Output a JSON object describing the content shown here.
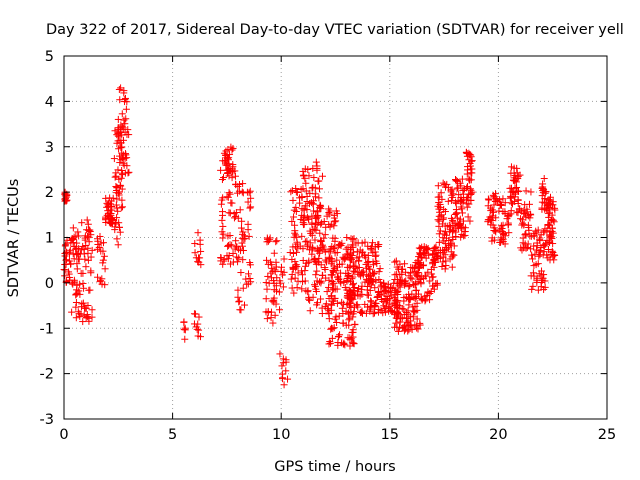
{
  "chart_data": {
    "type": "scatter",
    "title": "Day 322 of 2017, Sidereal Day-to-day VTEC variation (SDTVAR) for receiver yell",
    "xlabel": "GPS time / hours",
    "ylabel": "SDTVAR / TECUs",
    "xlim": [
      0,
      25
    ],
    "ylim": [
      -3,
      5
    ],
    "xticks": [
      0,
      5,
      10,
      15,
      20,
      25
    ],
    "yticks": [
      -3,
      -2,
      -1,
      0,
      1,
      2,
      3,
      4,
      5
    ],
    "grid": true,
    "marker": "+",
    "color": "#ff0000",
    "clusters": [
      {
        "x": [
          0.0,
          0.15
        ],
        "y": [
          1.8,
          2.0
        ],
        "n": 14
      },
      {
        "x": [
          0.0,
          0.35
        ],
        "y": [
          0.0,
          1.0
        ],
        "n": 30
      },
      {
        "x": [
          0.35,
          0.8
        ],
        "y": [
          -0.8,
          1.3
        ],
        "n": 45
      },
      {
        "x": [
          0.8,
          1.3
        ],
        "y": [
          -0.9,
          1.4
        ],
        "n": 50
      },
      {
        "x": [
          1.5,
          1.9
        ],
        "y": [
          -0.1,
          1.1
        ],
        "n": 20
      },
      {
        "x": [
          1.9,
          2.3
        ],
        "y": [
          1.3,
          1.9
        ],
        "n": 40
      },
      {
        "x": [
          2.3,
          2.7
        ],
        "y": [
          0.8,
          3.5
        ],
        "n": 55
      },
      {
        "x": [
          2.5,
          3.0
        ],
        "y": [
          2.3,
          4.3
        ],
        "n": 45
      },
      {
        "x": [
          5.5,
          5.6
        ],
        "y": [
          -1.3,
          -0.6
        ],
        "n": 6
      },
      {
        "x": [
          6.0,
          6.3
        ],
        "y": [
          -1.2,
          -0.6
        ],
        "n": 10
      },
      {
        "x": [
          6.0,
          6.3
        ],
        "y": [
          0.3,
          1.2
        ],
        "n": 12
      },
      {
        "x": [
          7.3,
          7.8
        ],
        "y": [
          2.2,
          3.0
        ],
        "n": 35
      },
      {
        "x": [
          7.2,
          8.0
        ],
        "y": [
          0.4,
          2.5
        ],
        "n": 55
      },
      {
        "x": [
          8.0,
          8.6
        ],
        "y": [
          -0.6,
          2.2
        ],
        "n": 50
      },
      {
        "x": [
          9.3,
          9.8
        ],
        "y": [
          -0.9,
          1.0
        ],
        "n": 45
      },
      {
        "x": [
          9.9,
          10.3
        ],
        "y": [
          -2.3,
          -1.4
        ],
        "n": 12
      },
      {
        "x": [
          9.9,
          10.2
        ],
        "y": [
          -0.6,
          0.7
        ],
        "n": 10
      },
      {
        "x": [
          10.4,
          11.2
        ],
        "y": [
          -0.3,
          2.1
        ],
        "n": 70
      },
      {
        "x": [
          11.0,
          11.8
        ],
        "y": [
          0.4,
          2.7
        ],
        "n": 70
      },
      {
        "x": [
          11.2,
          12.6
        ],
        "y": [
          -0.7,
          1.8
        ],
        "n": 110
      },
      {
        "x": [
          12.2,
          13.4
        ],
        "y": [
          -1.4,
          1.0
        ],
        "n": 140
      },
      {
        "x": [
          13.0,
          14.6
        ],
        "y": [
          -0.7,
          0.9
        ],
        "n": 160
      },
      {
        "x": [
          14.6,
          15.4
        ],
        "y": [
          -0.7,
          0.0
        ],
        "n": 55
      },
      {
        "x": [
          15.2,
          16.4
        ],
        "y": [
          -1.1,
          0.5
        ],
        "n": 140
      },
      {
        "x": [
          16.3,
          17.2
        ],
        "y": [
          -0.4,
          0.8
        ],
        "n": 80
      },
      {
        "x": [
          17.2,
          18.0
        ],
        "y": [
          0.3,
          2.2
        ],
        "n": 90
      },
      {
        "x": [
          18.0,
          18.7
        ],
        "y": [
          1.0,
          2.3
        ],
        "n": 60
      },
      {
        "x": [
          18.5,
          18.8
        ],
        "y": [
          1.8,
          2.9
        ],
        "n": 35
      },
      {
        "x": [
          19.5,
          20.0
        ],
        "y": [
          0.9,
          2.0
        ],
        "n": 35
      },
      {
        "x": [
          20.0,
          20.5
        ],
        "y": [
          0.8,
          1.9
        ],
        "n": 35
      },
      {
        "x": [
          20.5,
          21.0
        ],
        "y": [
          1.5,
          2.6
        ],
        "n": 45
      },
      {
        "x": [
          21.0,
          21.5
        ],
        "y": [
          0.7,
          2.1
        ],
        "n": 40
      },
      {
        "x": [
          21.5,
          22.2
        ],
        "y": [
          -0.2,
          1.2
        ],
        "n": 55
      },
      {
        "x": [
          22.0,
          22.3
        ],
        "y": [
          1.5,
          2.3
        ],
        "n": 25
      },
      {
        "x": [
          22.2,
          22.6
        ],
        "y": [
          0.4,
          1.9
        ],
        "n": 50
      }
    ],
    "outliers": [
      {
        "x": 11.9,
        "y": 2.35
      }
    ]
  }
}
